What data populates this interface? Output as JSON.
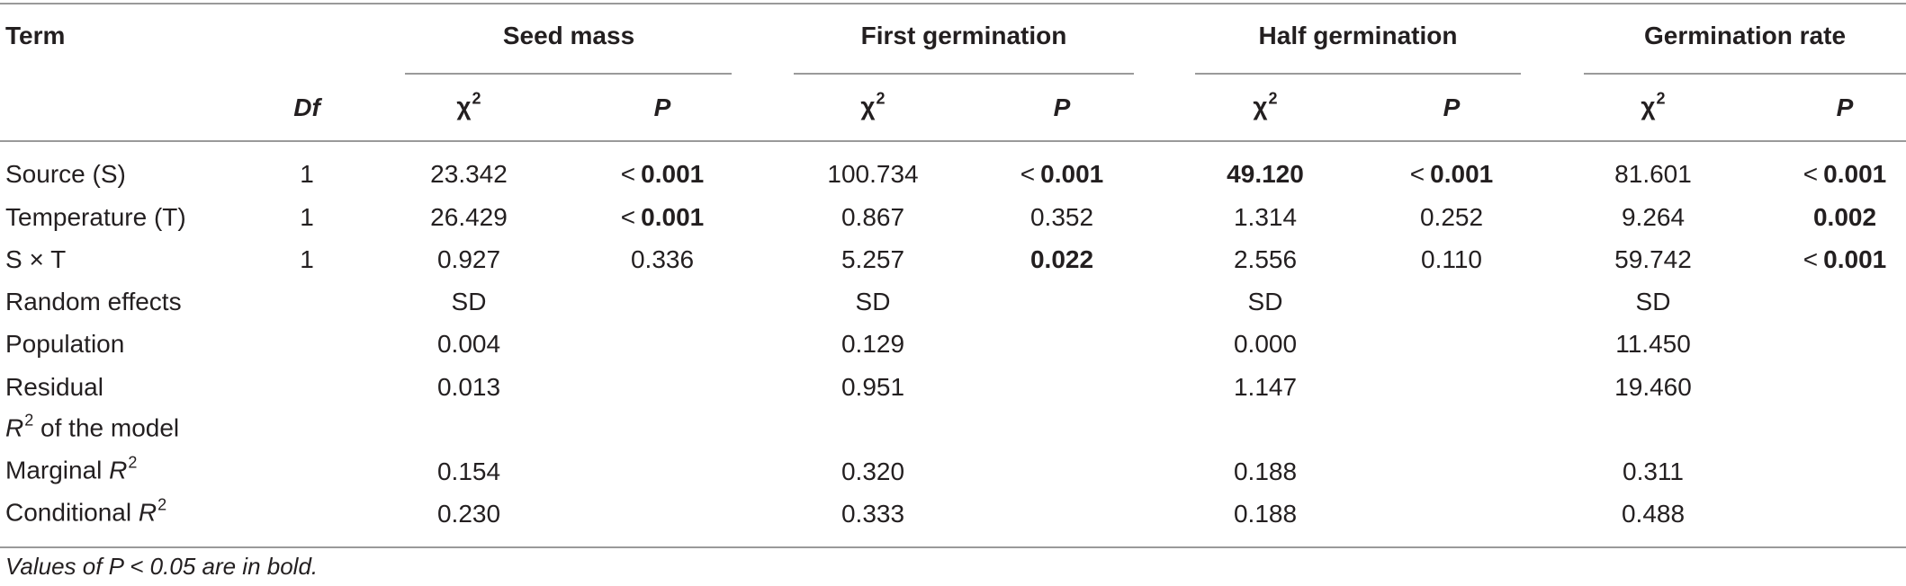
{
  "header": {
    "term": "Term",
    "groups": [
      "Seed mass",
      "First germination",
      "Half germination",
      "Germination rate"
    ],
    "df": "Df",
    "chi": "χ",
    "chi_sup": "2",
    "p": "P"
  },
  "rows": [
    {
      "term": "Source (S)",
      "df": "1",
      "cells": [
        {
          "chi": "23.342",
          "chi_bold": false,
          "p": "0.001",
          "p_lt": true,
          "p_bold": true
        },
        {
          "chi": "100.734",
          "chi_bold": false,
          "p": "0.001",
          "p_lt": true,
          "p_bold": true
        },
        {
          "chi": "49.120",
          "chi_bold": true,
          "p": "0.001",
          "p_lt": true,
          "p_bold": true
        },
        {
          "chi": "81.601",
          "chi_bold": false,
          "p": "0.001",
          "p_lt": true,
          "p_bold": true
        }
      ]
    },
    {
      "term": "Temperature (T)",
      "df": "1",
      "cells": [
        {
          "chi": "26.429",
          "chi_bold": false,
          "p": "0.001",
          "p_lt": true,
          "p_bold": true
        },
        {
          "chi": "0.867",
          "chi_bold": false,
          "p": "0.352",
          "p_lt": false,
          "p_bold": false
        },
        {
          "chi": "1.314",
          "chi_bold": false,
          "p": "0.252",
          "p_lt": false,
          "p_bold": false
        },
        {
          "chi": "9.264",
          "chi_bold": false,
          "p": "0.002",
          "p_lt": false,
          "p_bold": true
        }
      ]
    },
    {
      "term": "S × T",
      "df": "1",
      "cells": [
        {
          "chi": "0.927",
          "chi_bold": false,
          "p": "0.336",
          "p_lt": false,
          "p_bold": false
        },
        {
          "chi": "5.257",
          "chi_bold": false,
          "p": "0.022",
          "p_lt": false,
          "p_bold": true
        },
        {
          "chi": "2.556",
          "chi_bold": false,
          "p": "0.110",
          "p_lt": false,
          "p_bold": false
        },
        {
          "chi": "59.742",
          "chi_bold": false,
          "p": "0.001",
          "p_lt": true,
          "p_bold": true
        }
      ]
    }
  ],
  "lt_symbol": "<",
  "random_effects": {
    "label": "Random effects",
    "sd": "SD",
    "rows": [
      {
        "term": "Population",
        "values": [
          "0.004",
          "0.129",
          "0.000",
          "11.450"
        ]
      },
      {
        "term": "Residual",
        "values": [
          "0.013",
          "0.951",
          "1.147",
          "19.460"
        ]
      }
    ]
  },
  "r2": {
    "letter": "R",
    "sup": "2",
    "of_model": " of the model",
    "marginal_prefix": "Marginal ",
    "marginal": [
      "0.154",
      "0.320",
      "0.188",
      "0.311"
    ],
    "conditional_prefix": "Conditional ",
    "conditional": [
      "0.230",
      "0.333",
      "0.188",
      "0.488"
    ]
  },
  "footnote": "Values of P < 0.05 are in bold."
}
